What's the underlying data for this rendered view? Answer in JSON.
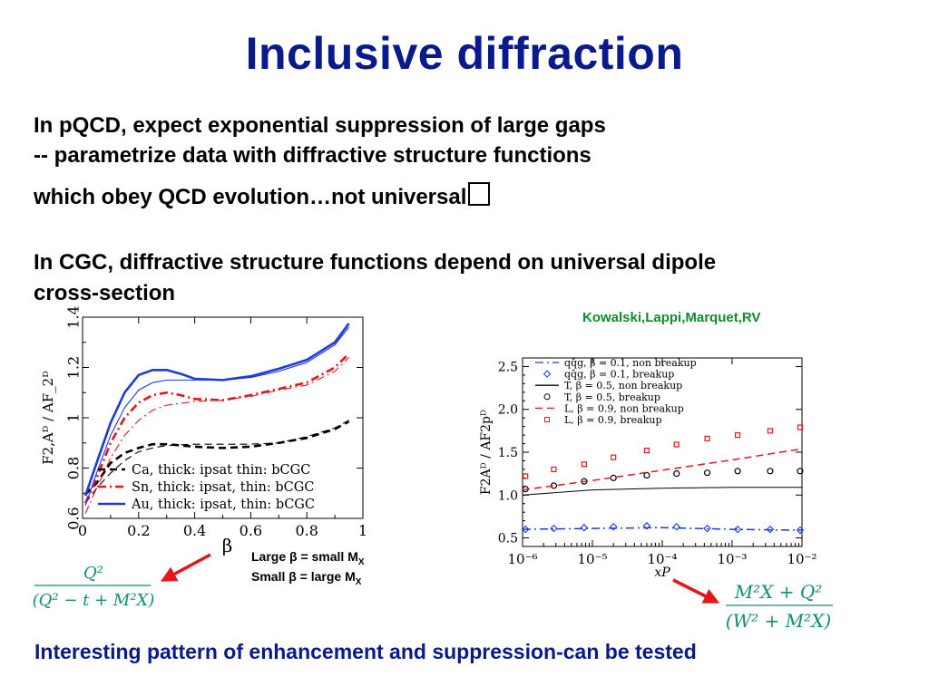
{
  "slide": {
    "title": "Inclusive diffraction",
    "lines": [
      "In pQCD, expect exponential suppression of large gaps",
      "-- parametrize data with diffractive structure functions",
      "which obey QCD evolution…not universal",
      "In CGC, diffractive structure functions depend on universal dipole",
      "cross-section"
    ],
    "credit": "Kowalski,Lappi,Marquet,RV",
    "note1": {
      "pre": "Large β = small M",
      "sub": "X"
    },
    "note2": {
      "pre": "Small β = large M",
      "sub": "X"
    },
    "bottom": "Interesting pattern of enhancement and suppression-can be tested",
    "arrow_color": "#e8141c",
    "formula_color": "#0f8f6f"
  },
  "chart_data": [
    {
      "type": "line",
      "xlabel": "β",
      "ylabel": "F_{2,A}^D / AF_2^D",
      "xlim": [
        0,
        1
      ],
      "ylim": [
        0.6,
        1.4
      ],
      "xticks": [
        "0",
        "0.2",
        "0.4",
        "0.6",
        "0.8",
        "1"
      ],
      "yticks": [
        "0.6",
        "0.8",
        "1",
        "1.2",
        "1.4"
      ],
      "legend_position": "bottom-left",
      "legend": [
        "Ca, thick: ipsat thin: bCGC",
        "Sn, thick: ipsat, thin: bCGC",
        "Au, thick: ipsat, thin: bCGC"
      ],
      "series": [
        {
          "name": "Ca, thick: ipsat thin: bCGC",
          "style": "dashed",
          "color": "#000000",
          "thick": true,
          "x": [
            0.01,
            0.05,
            0.1,
            0.15,
            0.2,
            0.25,
            0.3,
            0.35,
            0.4,
            0.5,
            0.6,
            0.7,
            0.8,
            0.9,
            0.95
          ],
          "y": [
            0.695,
            0.74,
            0.82,
            0.86,
            0.88,
            0.895,
            0.895,
            0.89,
            0.885,
            0.88,
            0.885,
            0.9,
            0.92,
            0.955,
            0.985
          ]
        },
        {
          "name": "Ca, thick: ipsat thin: bCGC",
          "style": "dashed",
          "color": "#000000",
          "thick": false,
          "x": [
            0.01,
            0.05,
            0.1,
            0.15,
            0.2,
            0.25,
            0.3,
            0.4,
            0.5,
            0.6,
            0.7,
            0.8,
            0.9,
            0.95
          ],
          "y": [
            0.66,
            0.72,
            0.78,
            0.83,
            0.865,
            0.88,
            0.89,
            0.895,
            0.895,
            0.895,
            0.9,
            0.925,
            0.96,
            0.99
          ]
        },
        {
          "name": "Sn, thick: ipsat, thin: bCGC",
          "style": "dashdot",
          "color": "#e8141c",
          "thick": true,
          "x": [
            0.01,
            0.05,
            0.1,
            0.15,
            0.2,
            0.25,
            0.3,
            0.35,
            0.4,
            0.5,
            0.6,
            0.7,
            0.8,
            0.9,
            0.95
          ],
          "y": [
            0.66,
            0.76,
            0.9,
            1.0,
            1.06,
            1.09,
            1.1,
            1.09,
            1.075,
            1.07,
            1.09,
            1.115,
            1.14,
            1.2,
            1.255
          ]
        },
        {
          "name": "Sn, thick: ipsat, thin: bCGC",
          "style": "dashdot",
          "color": "#e8141c",
          "thick": false,
          "x": [
            0.01,
            0.05,
            0.1,
            0.15,
            0.2,
            0.25,
            0.3,
            0.4,
            0.5,
            0.6,
            0.7,
            0.8,
            0.9,
            0.95
          ],
          "y": [
            0.62,
            0.72,
            0.84,
            0.93,
            0.99,
            1.03,
            1.05,
            1.065,
            1.07,
            1.085,
            1.11,
            1.13,
            1.185,
            1.24
          ]
        },
        {
          "name": "Au, thick: ipsat, thin: bCGC",
          "style": "solid",
          "color": "#1c3ae0",
          "thick": true,
          "x": [
            0.01,
            0.05,
            0.1,
            0.15,
            0.2,
            0.25,
            0.3,
            0.35,
            0.4,
            0.5,
            0.6,
            0.7,
            0.8,
            0.9,
            0.95
          ],
          "y": [
            0.69,
            0.82,
            0.98,
            1.1,
            1.17,
            1.19,
            1.19,
            1.175,
            1.155,
            1.15,
            1.165,
            1.195,
            1.23,
            1.3,
            1.375
          ]
        },
        {
          "name": "Au, thick: ipsat, thin: bCGC",
          "style": "solid",
          "color": "#1c3ae0",
          "thick": false,
          "x": [
            0.01,
            0.05,
            0.1,
            0.15,
            0.2,
            0.25,
            0.3,
            0.4,
            0.5,
            0.6,
            0.7,
            0.8,
            0.9,
            0.95
          ],
          "y": [
            0.65,
            0.78,
            0.93,
            1.04,
            1.11,
            1.14,
            1.15,
            1.15,
            1.15,
            1.16,
            1.185,
            1.22,
            1.29,
            1.36
          ]
        }
      ],
      "formula": {
        "num": "Q²",
        "den": "(Q² − t + M²X)"
      }
    },
    {
      "type": "scatter",
      "xlabel": "x_P",
      "ylabel": "F_{2A}^D / AF_{2p}^D",
      "xscale": "log",
      "xlim": [
        1e-06,
        0.01
      ],
      "ylim": [
        0.4,
        2.6
      ],
      "xticks": [
        "10⁻⁶",
        "10⁻⁵",
        "10⁻⁴",
        "10⁻³",
        "10⁻²"
      ],
      "yticks": [
        "0.5",
        "1.0",
        "1.5",
        "2.0",
        "2.5"
      ],
      "legend_position": "top-left",
      "legend": [
        "qq̄g, β = 0.1, non breakup",
        "qq̄g, β = 0.1, breakup",
        "T, β = 0.5, non breakup",
        "T, β = 0.5, breakup",
        "L, β = 0.9, non breakup",
        "L, β = 0.9, breakup"
      ],
      "series": [
        {
          "name": "qq̄g, β = 0.1, non breakup",
          "kind": "line",
          "style": "dashdot",
          "color": "#1c3ae0",
          "x": [
            1e-06,
            1e-05,
            0.0001,
            0.001,
            0.01
          ],
          "y": [
            0.6,
            0.61,
            0.62,
            0.6,
            0.59
          ]
        },
        {
          "name": "qq̄g, β = 0.1, breakup",
          "kind": "points",
          "marker": "diamond",
          "color": "#1c3ae0",
          "x": [
            1.1e-06,
            2.8e-06,
            7.6e-06,
            2e-05,
            6e-05,
            0.00016,
            0.00044,
            0.0012,
            0.0035,
            0.0094
          ],
          "y": [
            0.6,
            0.61,
            0.62,
            0.63,
            0.64,
            0.63,
            0.61,
            0.6,
            0.6,
            0.59
          ]
        },
        {
          "name": "T, β = 0.5, non breakup",
          "kind": "line",
          "style": "solid",
          "color": "#000000",
          "x": [
            1e-06,
            1e-05,
            0.0001,
            0.001,
            0.01
          ],
          "y": [
            1.0,
            1.06,
            1.08,
            1.09,
            1.09
          ]
        },
        {
          "name": "T, β = 0.5, breakup",
          "kind": "points",
          "marker": "circle",
          "color": "#000000",
          "x": [
            1.1e-06,
            2.8e-06,
            7.6e-06,
            2e-05,
            6e-05,
            0.00016,
            0.00044,
            0.0012,
            0.0035,
            0.0094
          ],
          "y": [
            1.07,
            1.11,
            1.16,
            1.2,
            1.23,
            1.25,
            1.26,
            1.28,
            1.28,
            1.28
          ]
        },
        {
          "name": "L, β = 0.9, non breakup",
          "kind": "line",
          "style": "dashed",
          "color": "#e8141c",
          "x": [
            1e-06,
            1e-05,
            0.0001,
            0.001,
            0.01
          ],
          "y": [
            1.06,
            1.17,
            1.29,
            1.41,
            1.54
          ]
        },
        {
          "name": "L, β = 0.9, breakup",
          "kind": "points",
          "marker": "square",
          "color": "#e8141c",
          "x": [
            1.1e-06,
            2.8e-06,
            7.6e-06,
            2e-05,
            6e-05,
            0.00016,
            0.00044,
            0.0012,
            0.0035,
            0.0094
          ],
          "y": [
            1.22,
            1.3,
            1.36,
            1.44,
            1.52,
            1.59,
            1.66,
            1.7,
            1.75,
            1.79
          ]
        }
      ],
      "formula": {
        "num": "M²X + Q²",
        "den": "(W² + M²X)"
      }
    }
  ]
}
